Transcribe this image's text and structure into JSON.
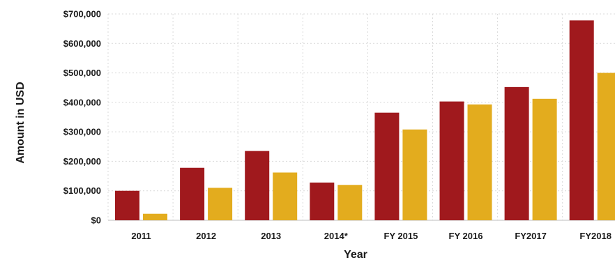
{
  "chart_data": {
    "type": "bar",
    "title": "",
    "xlabel": "Year",
    "ylabel": "Amount in USD",
    "categories": [
      "2011",
      "2012",
      "2013",
      "2014*",
      "FY 2015",
      "FY 2016",
      "FY2017",
      "FY2018"
    ],
    "series": [
      {
        "color": "#a0191d",
        "values": [
          100000,
          178000,
          235000,
          128000,
          365000,
          403000,
          452000,
          678000
        ]
      },
      {
        "color": "#e3ac1e",
        "values": [
          22000,
          110000,
          162000,
          120000,
          308000,
          393000,
          412000,
          500000
        ]
      }
    ],
    "ylim": [
      0,
      700000
    ],
    "yticks": [
      0,
      100000,
      200000,
      300000,
      400000,
      500000,
      600000,
      700000
    ],
    "ytick_labels": [
      "$0",
      "$100,000",
      "$200,000",
      "$300,000",
      "$400,000",
      "$500,000",
      "$600,000",
      "$700,000"
    ],
    "grid": true,
    "legend": "none"
  }
}
